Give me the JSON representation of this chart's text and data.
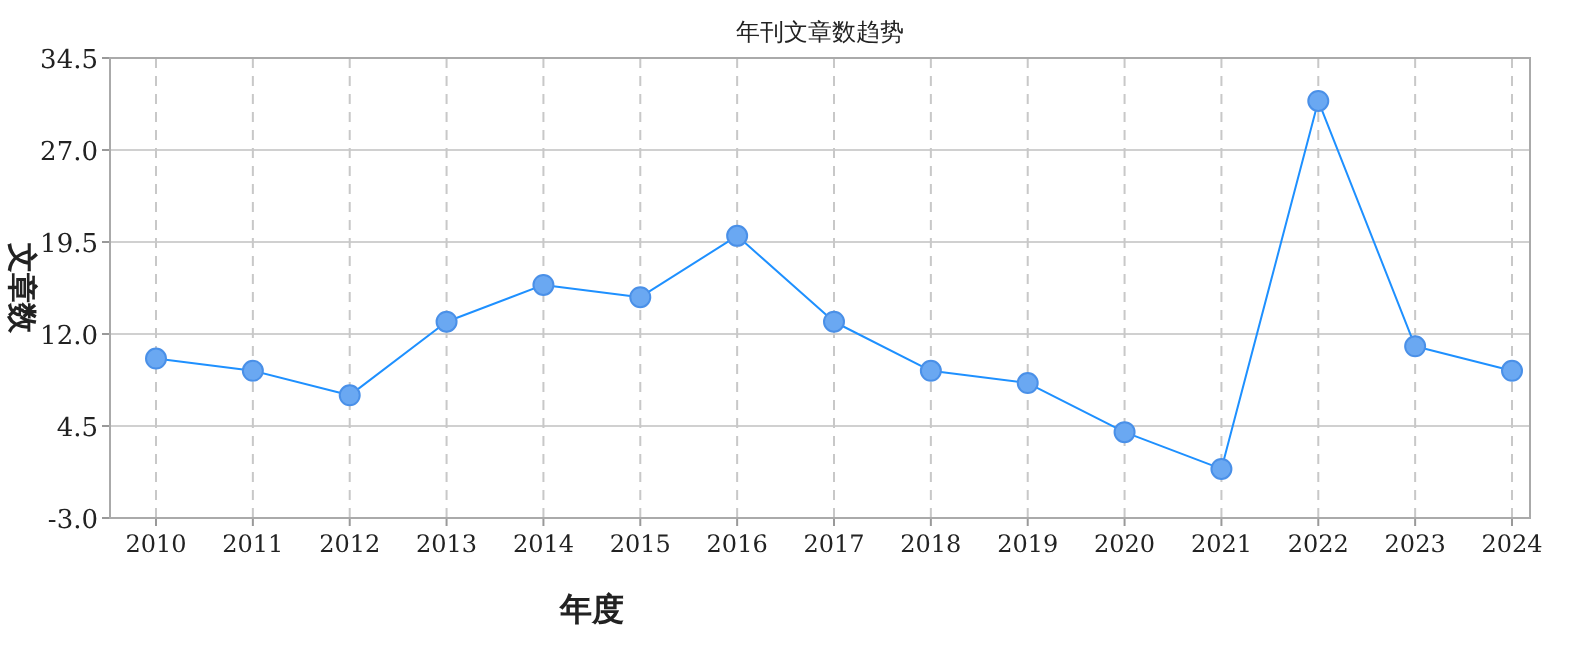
{
  "chart_data": {
    "type": "line",
    "title": "年刊文章数趋势",
    "xlabel": "年度",
    "ylabel": "文章数",
    "categories": [
      "2010",
      "2011",
      "2012",
      "2013",
      "2014",
      "2015",
      "2016",
      "2017",
      "2018",
      "2019",
      "2020",
      "2021",
      "2022",
      "2023",
      "2024"
    ],
    "series": [
      {
        "color": "#1e90ff",
        "values": [
          10,
          9,
          7,
          13,
          16,
          15,
          20,
          13,
          9,
          8,
          4,
          1,
          31,
          11,
          9
        ]
      }
    ],
    "ylim": [
      -3,
      34.5
    ],
    "yticks": [
      {
        "value": -3,
        "label": "-3.0"
      },
      4.5,
      {
        "value": 12,
        "label": "12.0"
      },
      19.5,
      {
        "value": 27,
        "label": "27.0"
      },
      34.5
    ],
    "grid": true,
    "marker": "circle",
    "line_style": "solid"
  }
}
